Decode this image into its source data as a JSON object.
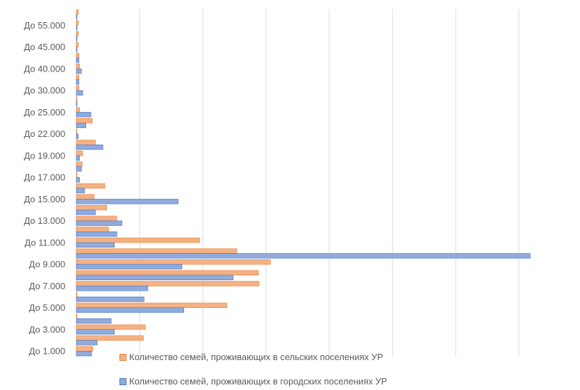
{
  "chart_data": {
    "type": "bar",
    "orientation": "horizontal",
    "categories": [
      "До 1.000",
      "",
      "До 3.000",
      "",
      "До 5.000",
      "",
      "До 7.000",
      "",
      "До 9.000",
      "",
      "До 11.000",
      "",
      "До 13.000",
      "",
      "До 15.000",
      "",
      "До 17.000",
      "",
      "До 19.000",
      "",
      "До 22.000",
      "",
      "До 25.000",
      "",
      "До 30.000",
      "",
      "До 40.000",
      "",
      "До 45.000",
      "",
      "До 55.000",
      ""
    ],
    "series": [
      {
        "name": "Количество семей,  проживающих  в сельских поселениях  УР",
        "color": "#F4B183",
        "stroke": "#ED7D31",
        "values": [
          2.6,
          10.6,
          10.9,
          0.1,
          23.8,
          0.1,
          28.9,
          28.8,
          30.7,
          25.4,
          19.5,
          5.1,
          6.4,
          4.8,
          2.8,
          4.5,
          0.1,
          0.9,
          1.0,
          3.0,
          0.1,
          2.5,
          0.5,
          0.1,
          0.4,
          0.4,
          0.5,
          0.4,
          0.3,
          0.3,
          0.3,
          0.3
        ]
      },
      {
        "name": "Количество семей,  проживающих  в городских поселениях  УР",
        "color": "#8FAADC",
        "stroke": "#4472C4",
        "values": [
          2.4,
          3.3,
          6.0,
          5.5,
          17.0,
          10.7,
          11.3,
          24.8,
          16.7,
          71.8,
          6.0,
          6.4,
          7.2,
          3.0,
          16.1,
          1.3,
          0.5,
          0.8,
          0.5,
          4.2,
          0.3,
          1.5,
          2.3,
          0.1,
          1.0,
          0.4,
          0.8,
          0.4,
          0.1,
          0.1,
          0.1,
          0.1
        ]
      }
    ],
    "xlim": [
      0,
      72
    ],
    "x_gridlines": [
      0,
      10,
      20,
      30,
      40,
      50,
      60,
      70
    ],
    "grid": true,
    "legend_position": "bottom"
  }
}
